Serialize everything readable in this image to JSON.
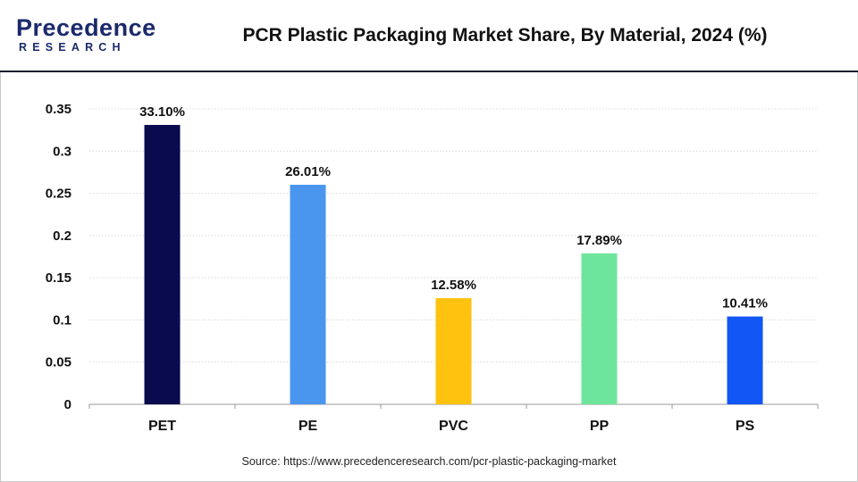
{
  "header": {
    "logo_main": "Precedence",
    "logo_sub": "RESEARCH",
    "title": "PCR Plastic Packaging Market Share, By Material, 2024 (%)"
  },
  "footer": {
    "source": "Source: https://www.precedenceresearch.com/pcr-plastic-packaging-market"
  },
  "colors": {
    "grid": "#d9d9d9",
    "axis": "#9a9a9a"
  },
  "chart_data": {
    "type": "bar",
    "title": "PCR Plastic Packaging Market Share, By Material, 2024 (%)",
    "xlabel": "",
    "ylabel": "",
    "categories": [
      "PET",
      "PE",
      "PVC",
      "PP",
      "PS"
    ],
    "values": [
      0.331,
      0.2601,
      0.1258,
      0.1789,
      0.1041
    ],
    "data_labels": [
      "33.10%",
      "26.01%",
      "12.58%",
      "17.89%",
      "10.41%"
    ],
    "bar_colors": [
      "#0a0a4e",
      "#4a96ef",
      "#ffc20e",
      "#6ee59c",
      "#1257f5"
    ],
    "ylim": [
      0,
      0.35
    ],
    "yticks": [
      0,
      0.05,
      0.1,
      0.15,
      0.2,
      0.25,
      0.3,
      0.35
    ],
    "ytick_labels": [
      "0",
      "0.05",
      "0.1",
      "0.15",
      "0.2",
      "0.25",
      "0.3",
      "0.35"
    ],
    "grid": true,
    "legend": "none"
  }
}
